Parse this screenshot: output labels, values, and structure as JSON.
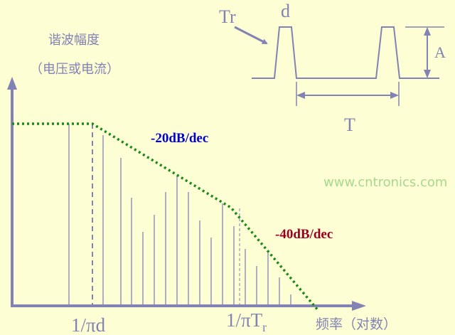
{
  "colors": {
    "background": "#fefed4",
    "line": "#8282b4",
    "envelope": "#1a8a1a",
    "slope1_label": "#0000cc",
    "slope2_label": "#990022",
    "watermark": "#a8d890"
  },
  "y_axis_title": "谐波幅度",
  "y_axis_subtitle": "（电压或电流）",
  "x_axis_title": "频率（对数）",
  "x_marks": [
    "1/πd",
    "1/πT",
    "r"
  ],
  "slope_labels": [
    "-20dB/dec",
    "-40dB/dec"
  ],
  "pulse_labels": {
    "rise_time": "Tr",
    "width": "d",
    "amplitude": "A",
    "period": "T"
  },
  "watermark": "www.cntronics.com"
}
